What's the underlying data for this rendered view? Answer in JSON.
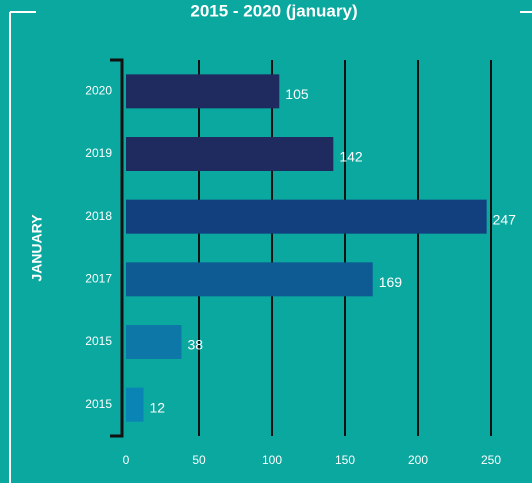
{
  "chart_data": {
    "type": "bar",
    "orientation": "horizontal",
    "title": "2015 - 2020 (january)",
    "y_label": "JANUARY",
    "categories": [
      "2020",
      "2019",
      "2018",
      "2017",
      "2015",
      "2015"
    ],
    "values": [
      105,
      142,
      247,
      169,
      38,
      12
    ],
    "colors": [
      "#1f2a5e",
      "#1f2a5e",
      "#123f7e",
      "#0e5a93",
      "#0d78a8",
      "#0a84b5"
    ],
    "xlim": [
      0,
      250
    ],
    "xticks": [
      0,
      50,
      100,
      150,
      200,
      250
    ],
    "grid": true
  }
}
